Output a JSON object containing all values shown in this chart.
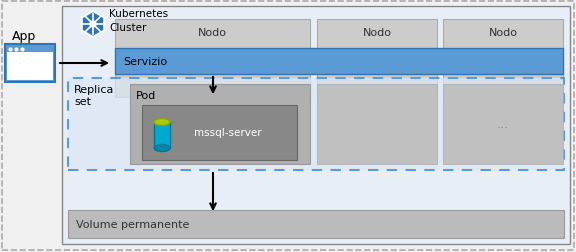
{
  "bg_color": "#f5f5f5",
  "outer_border_color": "#888888",
  "cluster_bg": "#e8eef5",
  "cluster_border": "#888888",
  "node_bg": "#cccccc",
  "node_border": "#aaaaaa",
  "service_bg": "#5b9bd5",
  "service_border": "#2e75b6",
  "replica_bg": "#dce8f5",
  "replica_border": "#5b9bd5",
  "pod_bg": "#999999",
  "pod_border": "#777777",
  "mssql_bg": "#777777",
  "volume_bg": "#bbbbbb",
  "volume_border": "#999999",
  "app_box_bg": "#5b9bd5",
  "app_box_border": "#2e75b6",
  "k8s_icon_color": "#2e75b6",
  "title": "Kubernetes\nCluster",
  "node_label": "Nodo",
  "service_label": "Servizio",
  "replica_label": "Replica\nset",
  "pod_label": "Pod",
  "mssql_label": "mssql-server",
  "volume_label": "Volume permanente",
  "app_label": "App",
  "dots": "...",
  "figsize": [
    5.76,
    2.53
  ],
  "dpi": 100
}
